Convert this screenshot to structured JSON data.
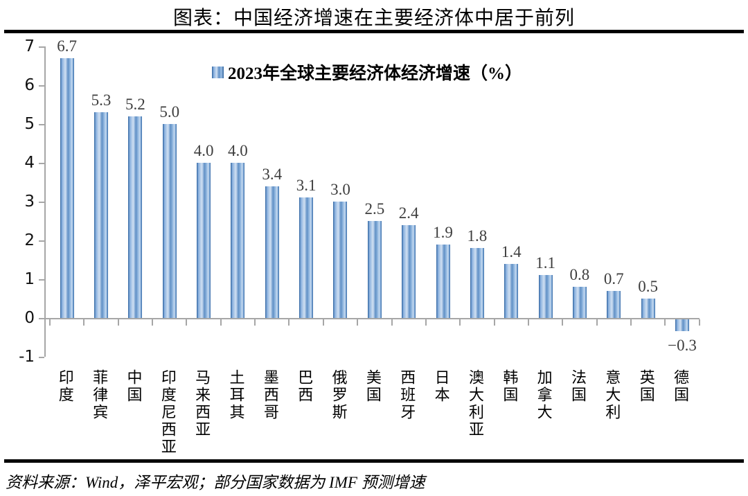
{
  "header": {
    "title": "图表：中国经济增速在主要经济体中居于前列"
  },
  "legend": {
    "label": "2023年全球主要经济体经济增速（%）",
    "swatch_icon": "bar-series-swatch"
  },
  "footer": {
    "source": "资料来源：Wind，泽平宏观；部分国家数据为 IMF 预测增速"
  },
  "colors": {
    "bar_edge": "#2f639e",
    "bar_light": "#cfdff2",
    "bar_mid": "#6090c6",
    "axis": "#a6a6a6",
    "value_label": "#3d3d3d",
    "rule": "#000000"
  },
  "chart_data": {
    "type": "bar",
    "title": "2023年全球主要经济体经济增速（%）",
    "categories": [
      "印度",
      "菲律宾",
      "中国",
      "印度尼西亚",
      "马来西亚",
      "土耳其",
      "墨西哥",
      "巴西",
      "俄罗斯",
      "美国",
      "西班牙",
      "日本",
      "澳大利亚",
      "韩国",
      "加拿大",
      "法国",
      "意大利",
      "英国",
      "德国"
    ],
    "values": [
      6.7,
      5.3,
      5.2,
      5.0,
      4.0,
      4.0,
      3.4,
      3.1,
      3.0,
      2.5,
      2.4,
      1.9,
      1.8,
      1.4,
      1.1,
      0.8,
      0.7,
      0.5,
      -0.3
    ],
    "value_labels": [
      "6.7",
      "5.3",
      "5.2",
      "5.0",
      "4.0",
      "4.0",
      "3.4",
      "3.1",
      "3.0",
      "2.5",
      "2.4",
      "1.9",
      "1.8",
      "1.4",
      "1.1",
      "0.8",
      "0.7",
      "0.5",
      "−0.3"
    ],
    "xlabel": "",
    "ylabel": "",
    "ylim": [
      -1,
      7
    ],
    "yticks": [
      7,
      6,
      5,
      4,
      3,
      2,
      1,
      0,
      -1
    ],
    "grid": false,
    "legend_position": "top-center-inside",
    "bar_orientation": "vertical"
  }
}
